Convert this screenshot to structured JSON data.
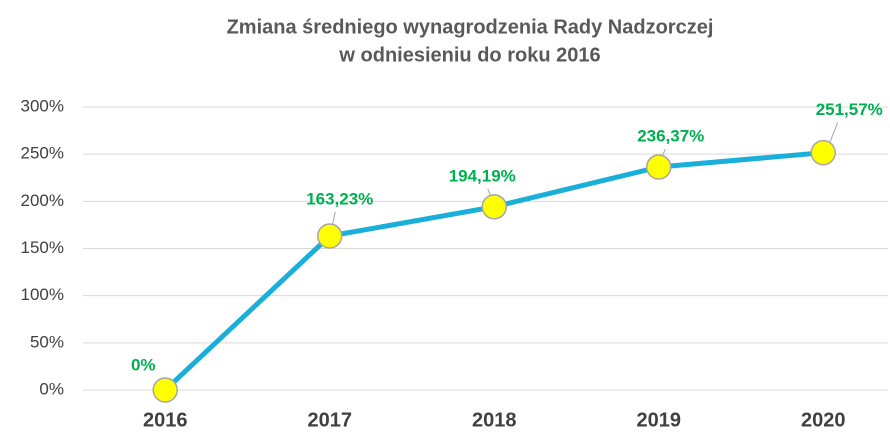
{
  "chart_data": {
    "type": "line",
    "title": [
      "Zmiana średniego wynagrodzenia Rady Nadzorczej",
      "w odniesieniu do roku 2016"
    ],
    "categories": [
      "2016",
      "2017",
      "2018",
      "2019",
      "2020"
    ],
    "values": [
      0,
      163.23,
      194.19,
      236.37,
      251.57
    ],
    "value_labels": [
      "0%",
      "163,23%",
      "194,19%",
      "236,37%",
      "251,57%"
    ],
    "color": "#1aafd9",
    "marker_color": "#ffff00",
    "label_color": "#00b050",
    "ylim": [
      0,
      300
    ],
    "yticks": [
      {
        "value": 0,
        "label": "0%"
      },
      {
        "value": 50,
        "label": "50%"
      },
      {
        "value": 100,
        "label": "100%"
      },
      {
        "value": 150,
        "label": "150%"
      },
      {
        "value": 200,
        "label": "200%"
      },
      {
        "value": 250,
        "label": "250%"
      },
      {
        "value": 300,
        "label": "300%"
      }
    ],
    "grid": true
  }
}
